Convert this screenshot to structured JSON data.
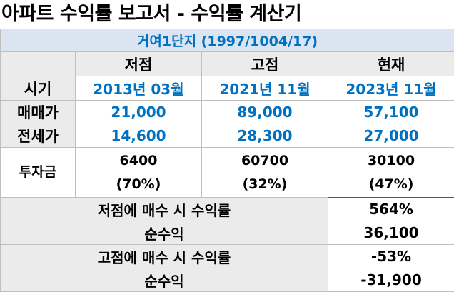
{
  "title": "아파트 수익률 보고서 - 수익률 계산기",
  "apartment": "거여1단지 (1997/1004/17)",
  "columns": [
    "저점",
    "고점",
    "현재"
  ],
  "rows": {
    "period": {
      "label": "시기",
      "values": [
        "2013년 03월",
        "2021년 11월",
        "2023년 11월"
      ]
    },
    "sale": {
      "label": "매매가",
      "values": [
        "21,000",
        "89,000",
        "57,100"
      ]
    },
    "jeonse": {
      "label": "전세가",
      "values": [
        "14,600",
        "28,300",
        "27,000"
      ]
    },
    "investment": {
      "label": "투자금",
      "values": [
        "6400",
        "60700",
        "30100"
      ],
      "ratios": [
        "(70%)",
        "(32%)",
        "(47%)"
      ]
    }
  },
  "summary": [
    {
      "label": "저점에 매수 시 수익률",
      "value": "564%"
    },
    {
      "label": "순수익",
      "value": "36,100"
    },
    {
      "label": "고점에 매수 시 수익률",
      "value": "-53%"
    },
    {
      "label": "순수익",
      "value": "-31,900"
    }
  ],
  "colors": {
    "accent_text": "#0070c0",
    "band_bg": "#dbe5f1",
    "label_bg": "#ebebeb",
    "selected_border": "#1e7a3c"
  }
}
